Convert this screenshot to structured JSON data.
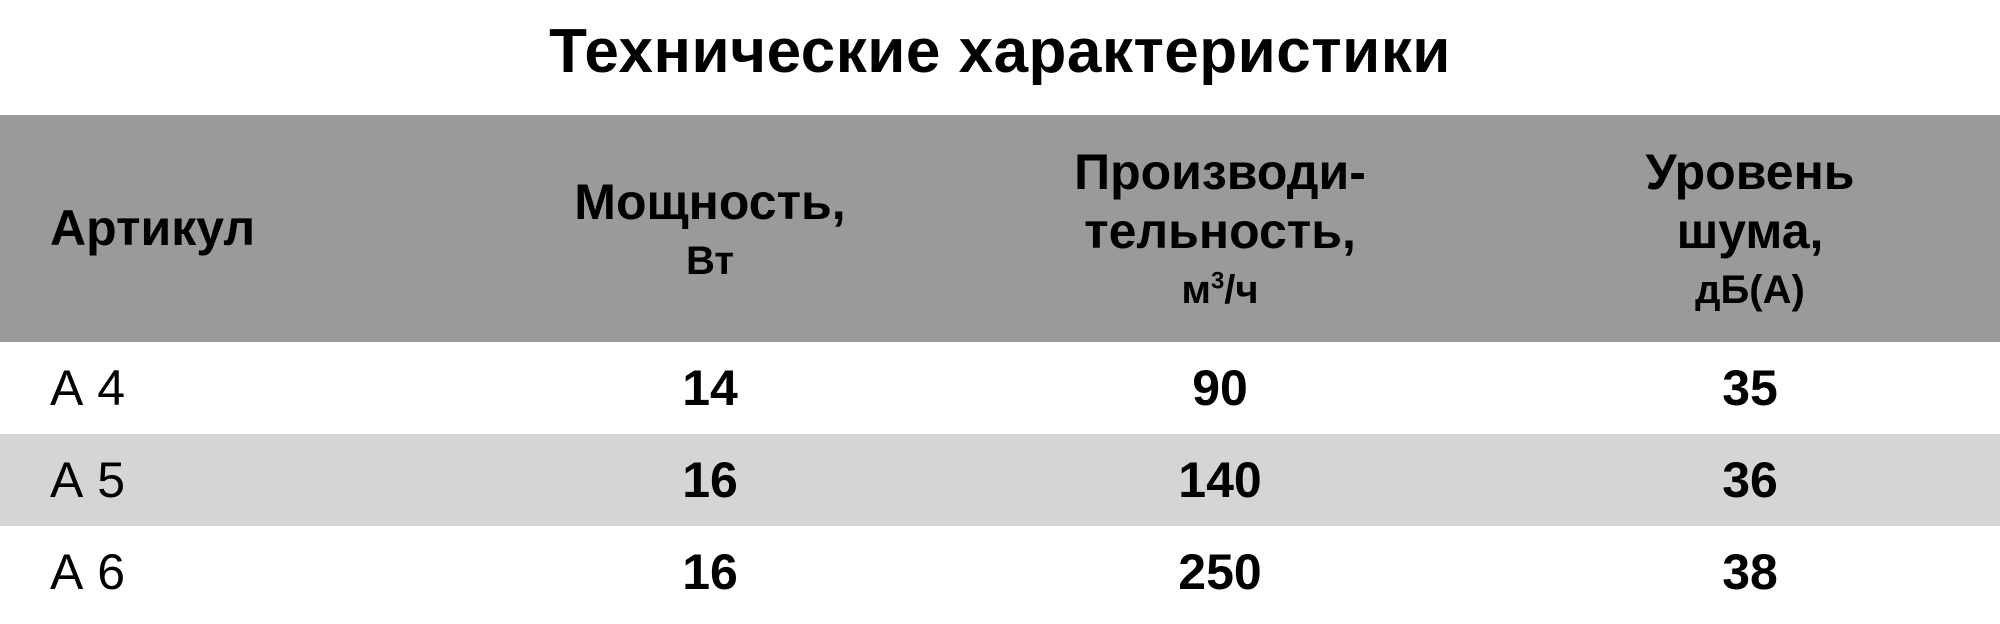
{
  "title": "Технические характеристики",
  "table": {
    "type": "table",
    "background_color": "#ffffff",
    "header_bg": "#9a9a9a",
    "row_odd_bg": "#ffffff",
    "row_even_bg": "#d5d5d5",
    "text_color": "#000000",
    "title_fontsize": 62,
    "header_fontsize": 50,
    "unit_fontsize": 40,
    "cell_fontsize": 50,
    "column_widths_pct": [
      24,
      23,
      28,
      25
    ],
    "columns": [
      {
        "label": "Артикул",
        "unit": "",
        "align": "left"
      },
      {
        "label": "Мощность,",
        "unit": "Вт",
        "align": "center"
      },
      {
        "label": "Производи-\nтельность,",
        "unit": "м³/ч",
        "align": "center"
      },
      {
        "label": "Уровень шума,",
        "unit": "дБ(А)",
        "align": "center"
      }
    ],
    "rows": [
      {
        "article": "А 4",
        "power": "14",
        "capacity": "90",
        "noise": "35"
      },
      {
        "article": "А 5",
        "power": "16",
        "capacity": "140",
        "noise": "36"
      },
      {
        "article": "А 6",
        "power": "16",
        "capacity": "250",
        "noise": "38"
      }
    ]
  }
}
